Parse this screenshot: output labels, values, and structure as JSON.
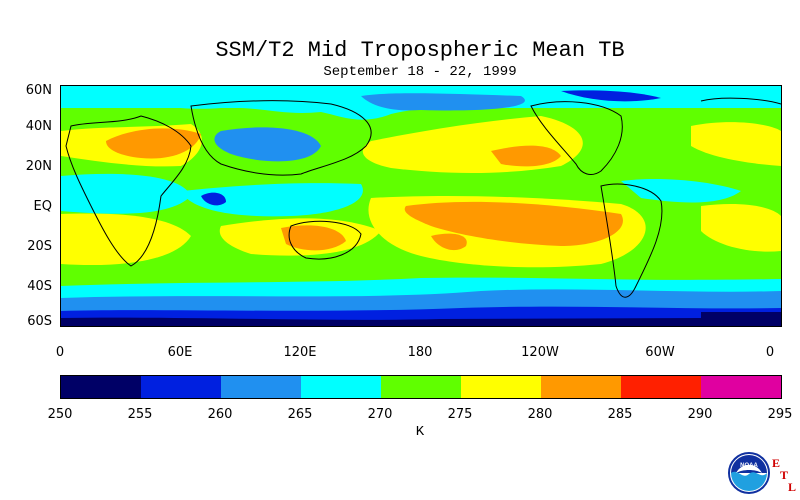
{
  "title": "SSM/T2 Mid Tropospheric Mean TB",
  "subtitle": "September 18 - 22, 1999",
  "lat_labels": [
    "60N",
    "40N",
    "20N",
    "EQ",
    "20S",
    "40S",
    "60S"
  ],
  "lon_labels": [
    "0",
    "60E",
    "120E",
    "180",
    "120W",
    "60W",
    "0"
  ],
  "colorbar": {
    "ticks": [
      "250",
      "255",
      "260",
      "265",
      "270",
      "275",
      "280",
      "285",
      "290",
      "295"
    ],
    "colors": [
      "#000066",
      "#0020e0",
      "#2090f0",
      "#00ffff",
      "#60ff00",
      "#ffff00",
      "#ff9900",
      "#ff2000",
      "#e000a0"
    ],
    "units": "K"
  },
  "logo": {
    "icon": "noaa-logo-icon",
    "text": "NOAA",
    "letters": [
      "E",
      "T",
      "L"
    ]
  }
}
